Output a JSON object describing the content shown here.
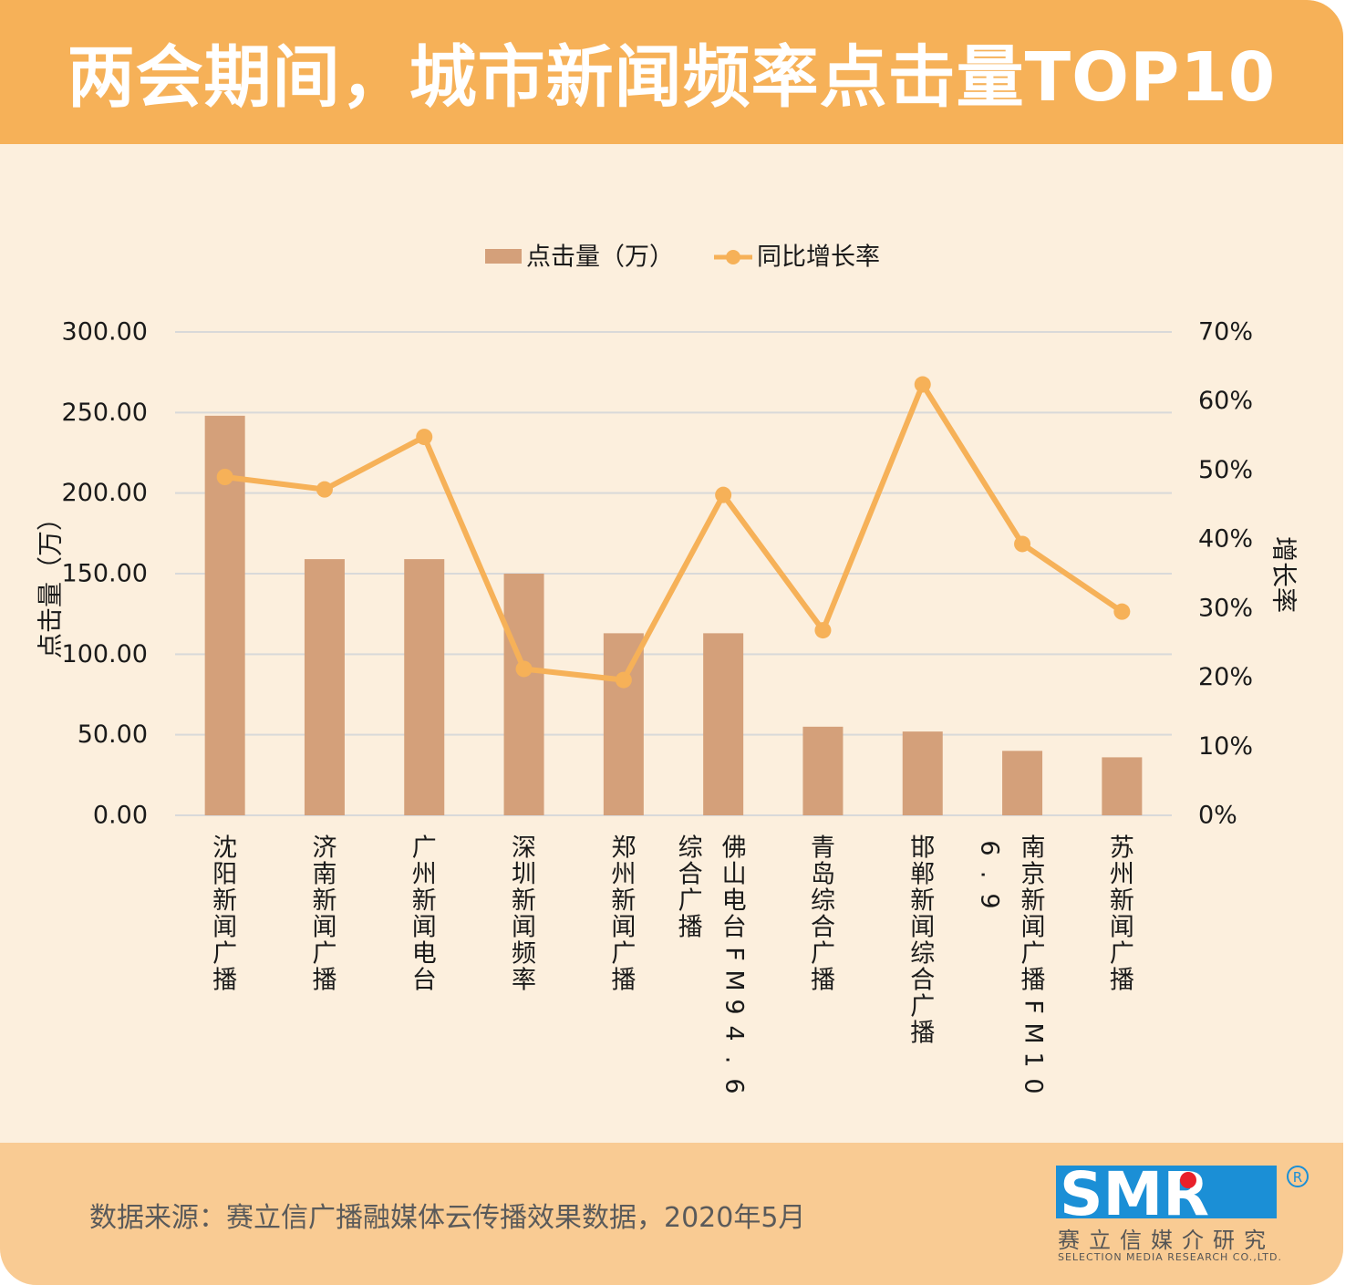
{
  "title": "两会期间，城市新闻频率点击量TOP10",
  "source": "数据来源：赛立信广播融媒体云传播效果数据，2020年5月",
  "logo": {
    "text": "SMR",
    "registered": "R",
    "cn": "赛立信媒介研究",
    "en": "SELECTION MEDIA RESEARCH CO.,LTD."
  },
  "colors": {
    "bar": "#d4a07a",
    "line": "#f6b158",
    "header": "#f6b158",
    "footer": "#f9cb93",
    "background": "#fcefdd"
  },
  "chart_data": {
    "type": "bar",
    "categories": [
      "沈阳新闻广播",
      "济南新闻广播",
      "广州新闻电台",
      "深圳新闻频率",
      "郑州新闻广播",
      "佛山电台FM94.6综合广播",
      "青岛综合广播",
      "邯郸新闻综合广播",
      "南京新闻广播FM106.9",
      "苏州新闻广播"
    ],
    "series": [
      {
        "name": "点击量（万）",
        "type": "bar",
        "axis": "left",
        "values": [
          248,
          159,
          159,
          150,
          113,
          113,
          55,
          52,
          40,
          36
        ]
      },
      {
        "name": "同比增长率",
        "type": "line",
        "axis": "right",
        "values": [
          49,
          47.2,
          54.8,
          21.2,
          19.6,
          46.4,
          26.8,
          62.4,
          39.3,
          29.5
        ]
      }
    ],
    "ylabel": "点击量（万）",
    "y2label": "增长率",
    "ylim": [
      0,
      300
    ],
    "y2lim": [
      0,
      70
    ],
    "yticks": [
      "0.00",
      "50.00",
      "100.00",
      "150.00",
      "200.00",
      "250.00",
      "300.00"
    ],
    "y2ticks": [
      "0%",
      "10%",
      "20%",
      "30%",
      "40%",
      "50%",
      "60%",
      "70%"
    ],
    "grid": true,
    "legend": "top-center"
  }
}
